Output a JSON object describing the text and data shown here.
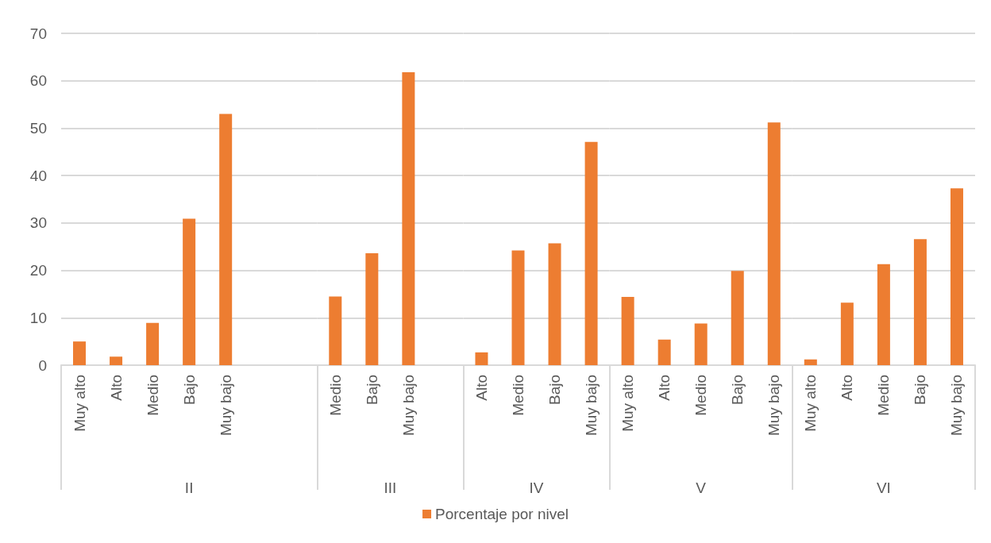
{
  "chart_data": [
    {
      "type": "bar",
      "xlabel": "II",
      "categories": [
        "Muy alto",
        "Alto",
        "Medio",
        "Bajo",
        "Muy bajo",
        null,
        null
      ],
      "series": [
        {
          "name": "Porcentaje por nivel",
          "color": "#ed7d31",
          "values": [
            5,
            1.8,
            8.9,
            30.9,
            53,
            null,
            null
          ]
        }
      ],
      "ylim": [
        0,
        70
      ],
      "yticks": [
        0,
        10,
        20,
        30,
        40,
        50,
        60,
        70
      ],
      "grid": "y",
      "legend": "bottom"
    },
    {
      "type": "bar",
      "xlabel": "III",
      "categories": [
        "Medio",
        "Bajo",
        "Muy bajo",
        null
      ],
      "values": [
        14.5,
        23.6,
        61.8,
        null
      ],
      "color": "#ed7d31",
      "ylim": [
        0,
        70
      ],
      "yticks": [
        0,
        10,
        20,
        30,
        40,
        50,
        60,
        70
      ],
      "grid": "y",
      "tick_labels": "x"
    },
    {
      "type": "bar",
      "xlabel": "IV",
      "categories": [
        "Alto",
        "Medio",
        "Bajo",
        "Muy bajo"
      ],
      "values": [
        2.7,
        24.2,
        25.7,
        47.1
      ],
      "color": "#ed7d31",
      "ylim": [
        0,
        70
      ],
      "yticks": [
        0,
        10,
        20,
        30,
        40,
        50,
        60,
        70
      ],
      "grid": "y",
      "tick_labels": "x"
    },
    {
      "type": "bar",
      "xlabel": "V",
      "categories": [
        "Muy alto",
        "Alto",
        "Medio",
        "Bajo",
        "Muy bajo"
      ],
      "values": [
        14.4,
        5.4,
        8.8,
        19.9,
        51.2
      ],
      "color": "#ed7d31",
      "ylim": [
        0,
        70
      ],
      "yticks": [
        0,
        10,
        20,
        30,
        40,
        50,
        60,
        70
      ],
      "grid": "y",
      "tick_labels": "x"
    },
    {
      "type": "bar",
      "xlabel": "VI",
      "categories": [
        "Muy alto",
        "Alto",
        "Medio",
        "Bajo",
        "Muy bajo"
      ],
      "values": [
        1.2,
        13.2,
        21.3,
        26.6,
        37.3
      ],
      "color": "#ed7d31",
      "ylim": [
        0,
        70
      ],
      "yticks": [
        0,
        10,
        20,
        30,
        40,
        50,
        60,
        70
      ],
      "grid": "y",
      "tick_labels": "x"
    }
  ]
}
